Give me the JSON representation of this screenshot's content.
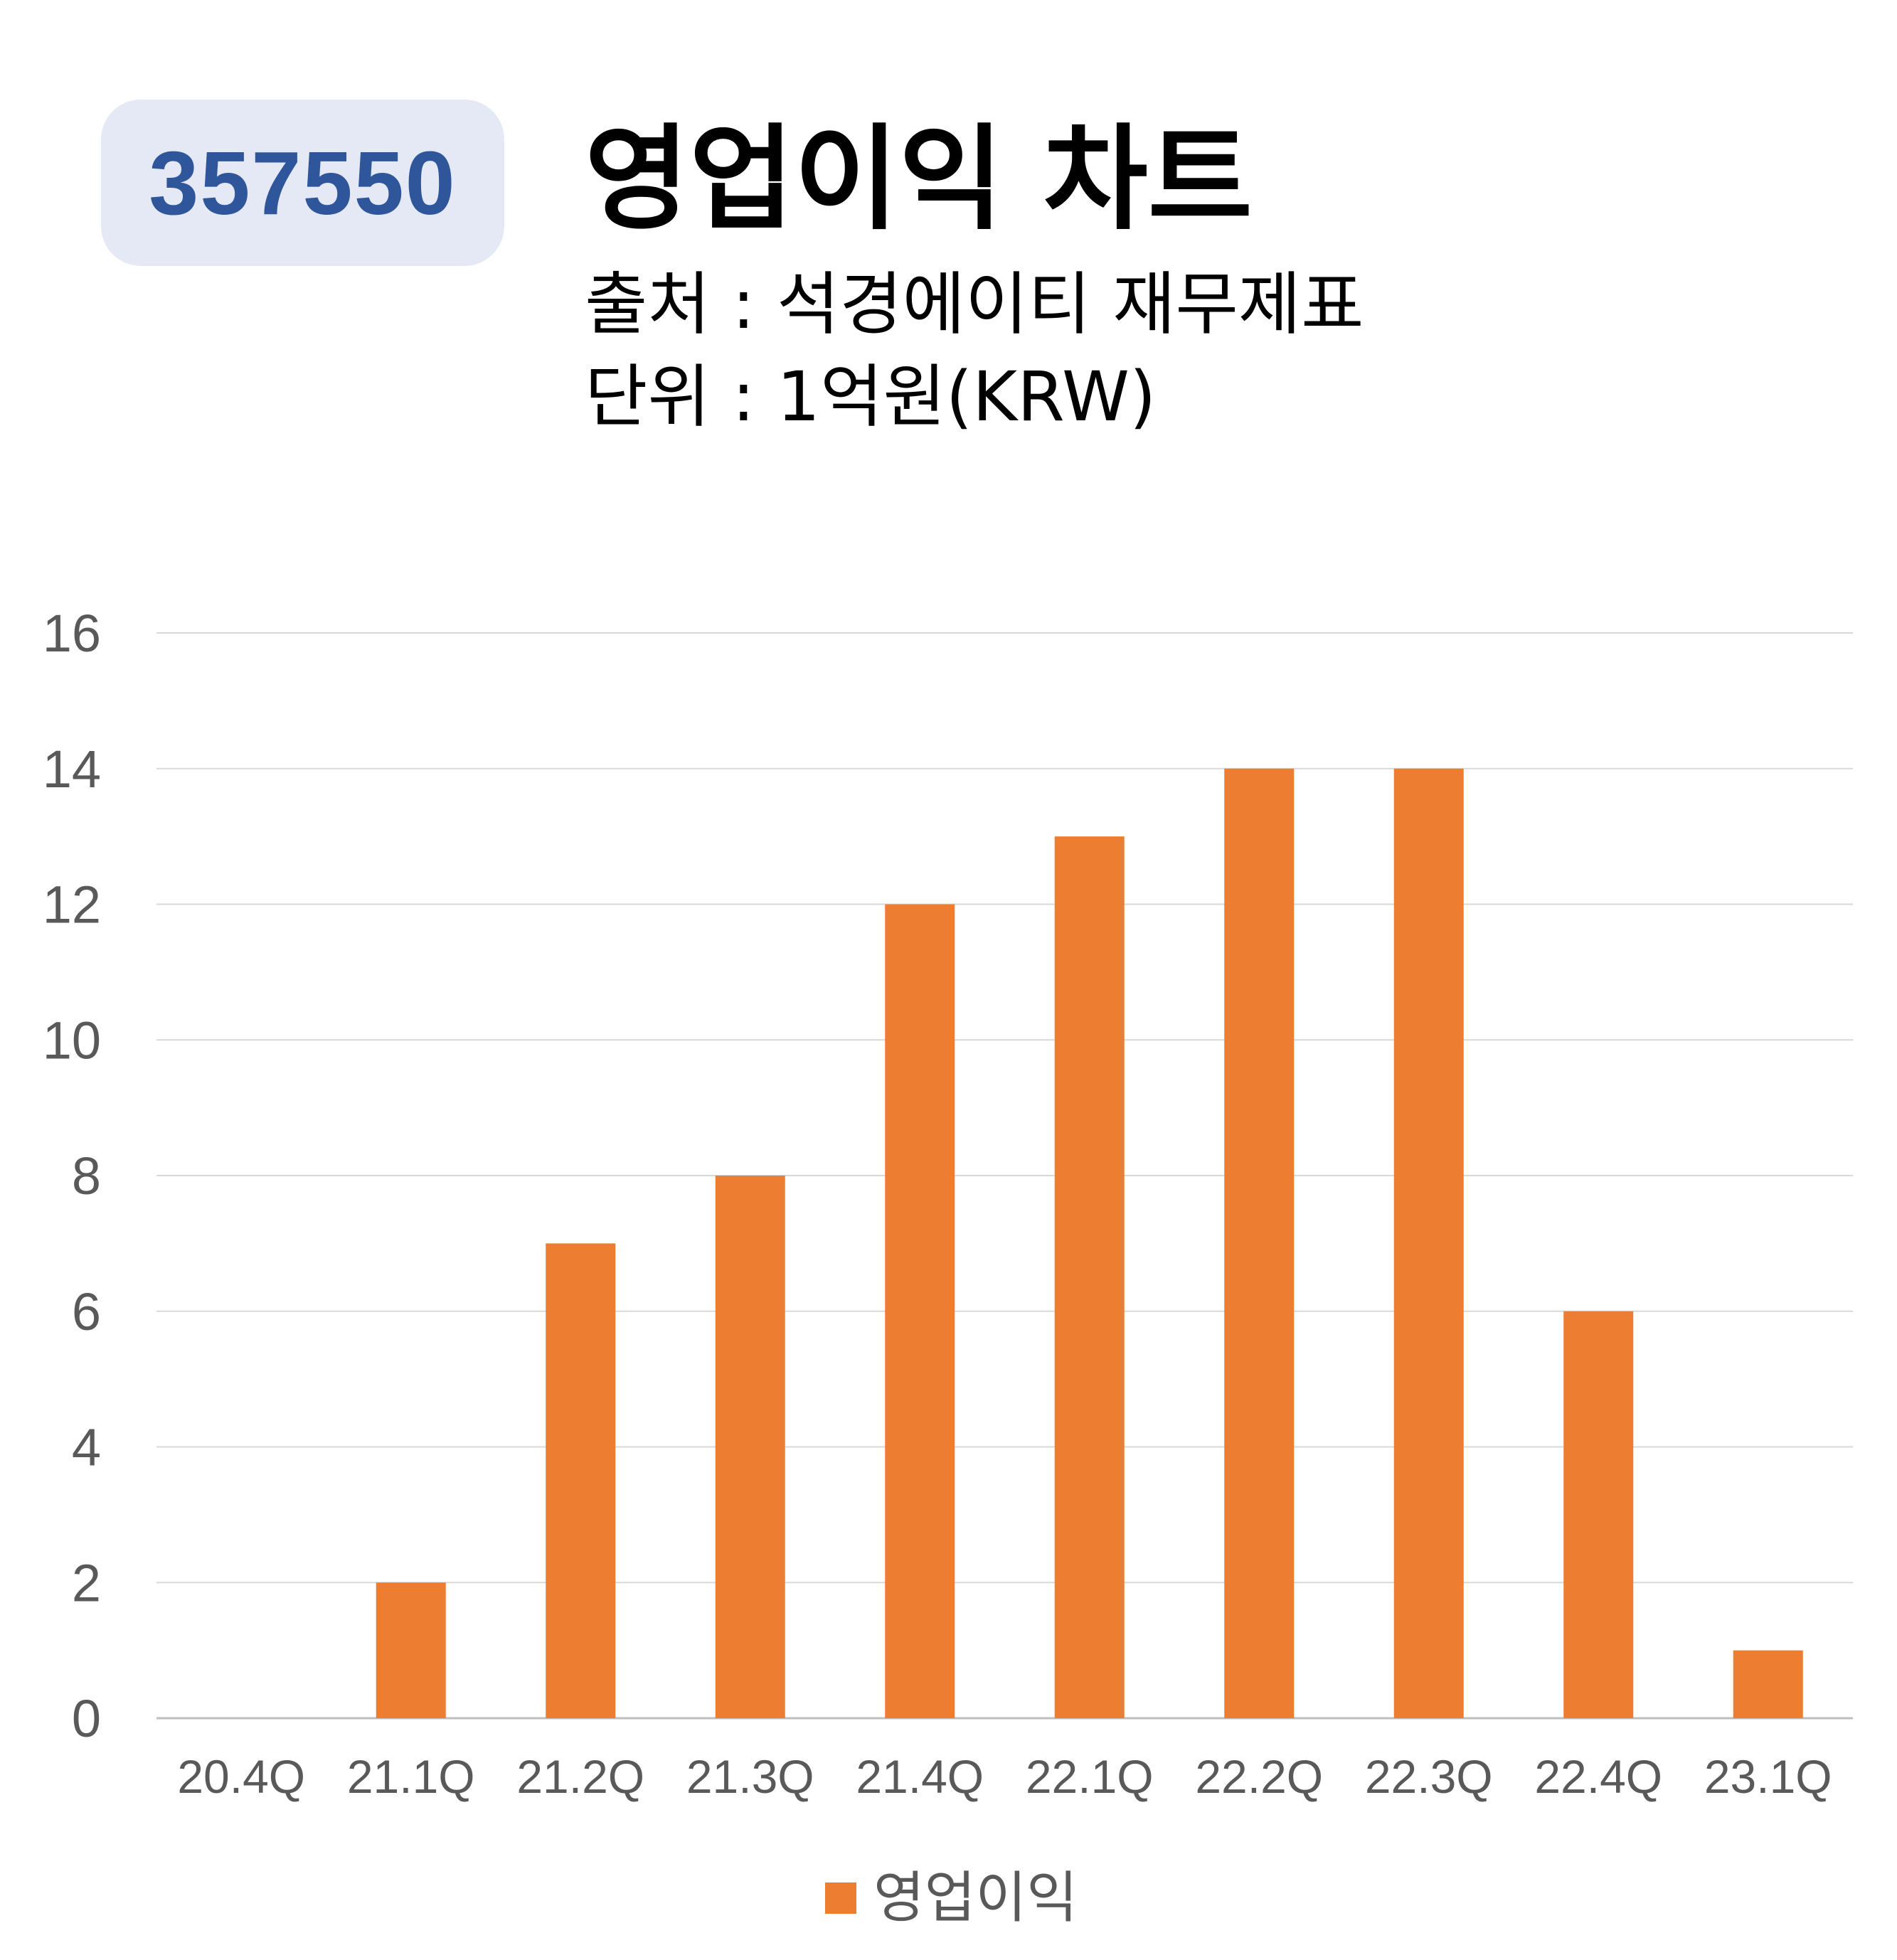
{
  "header": {
    "code": "357550",
    "title": "영업이익 차트",
    "source_line": "출처 : 석경에이티 재무제표",
    "unit_line": "단위 : 1억원(KRW)"
  },
  "colors": {
    "bar": "#ed7d31",
    "badge_bg": "#e4e9f5",
    "badge_text": "#2f569b",
    "grid": "#d9d9d9",
    "tick_text": "#595959"
  },
  "chart_data": {
    "type": "bar",
    "categories": [
      "20.4Q",
      "21.1Q",
      "21.2Q",
      "21.3Q",
      "21.4Q",
      "22.1Q",
      "22.2Q",
      "22.3Q",
      "22.4Q",
      "23.1Q"
    ],
    "series": [
      {
        "name": "영업이익",
        "values": [
          0,
          2,
          7,
          8,
          12,
          13,
          14,
          14,
          6,
          1
        ]
      }
    ],
    "ylim": [
      0,
      16
    ],
    "yticks": [
      0,
      2,
      4,
      6,
      8,
      10,
      12,
      14,
      16
    ],
    "grid": true,
    "legend": "bottom-center"
  }
}
